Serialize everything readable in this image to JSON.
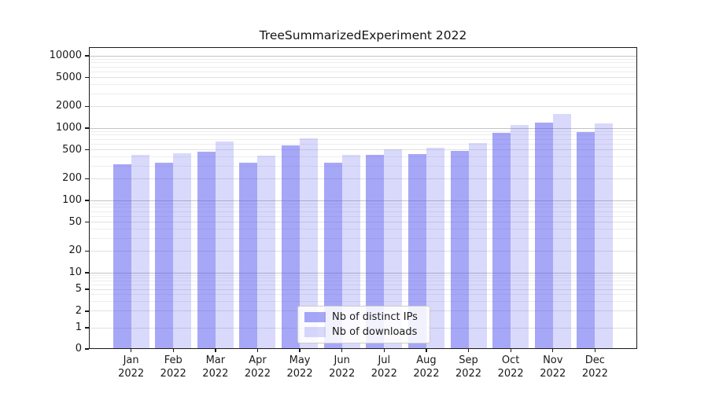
{
  "title": "TreeSummarizedExperiment 2022",
  "chart_data": {
    "type": "bar",
    "title": "TreeSummarizedExperiment 2022",
    "categories": [
      "Jan 2022",
      "Feb 2022",
      "Mar 2022",
      "Apr 2022",
      "May 2022",
      "Jun 2022",
      "Jul 2022",
      "Aug 2022",
      "Sep 2022",
      "Oct 2022",
      "Nov 2022",
      "Dec 2022"
    ],
    "series": [
      {
        "name": "Nb of distinct IPs",
        "color": "#a8a8f8",
        "fill": "rgba(80,80,240,0.5)",
        "values": [
          320,
          330,
          470,
          335,
          570,
          335,
          425,
          440,
          490,
          870,
          1200,
          890
        ]
      },
      {
        "name": "Nb of downloads",
        "color": "#d8d8f8",
        "fill": "rgba(80,80,240,0.22)",
        "values": [
          430,
          450,
          650,
          420,
          720,
          425,
          510,
          535,
          625,
          1100,
          1550,
          1150
        ]
      }
    ],
    "xlabel": "",
    "ylabel": "",
    "yscale": "symlog",
    "yticks": [
      0,
      1,
      2,
      5,
      10,
      20,
      50,
      100,
      200,
      500,
      1000,
      2000,
      5000,
      10000
    ],
    "ylim": [
      0,
      10000
    ],
    "grid": true,
    "grid_major_color": "#c3c3c3",
    "grid_minor_color": "#ededed",
    "legend_position": "lower center inside"
  }
}
